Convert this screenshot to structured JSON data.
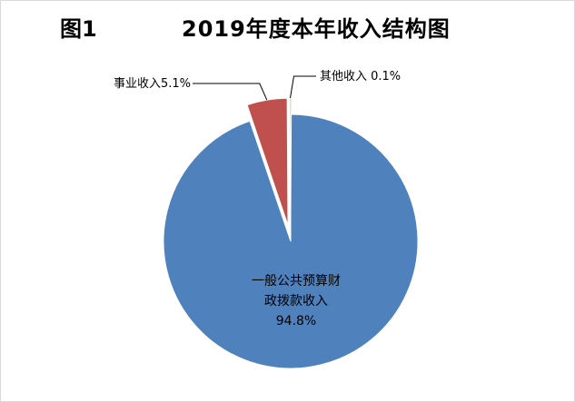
{
  "figure_label": "图1",
  "chart_data": {
    "type": "pie",
    "title": "2019年度本年收入结构图",
    "slices": [
      {
        "name": "一般公共预算财政拨款收入",
        "value": 94.8,
        "label_lines": [
          "一般公共预算财",
          "政拨款收入",
          "94.8%"
        ],
        "color": "#4f81bd",
        "exploded": false
      },
      {
        "name": "事业收入",
        "value": 5.1,
        "label": "事业收入5.1%",
        "color": "#c0504d",
        "exploded": true
      },
      {
        "name": "其他收入",
        "value": 0.1,
        "label": "其他收入 0.1%",
        "color": "#9bbb59",
        "exploded": true
      }
    ]
  }
}
